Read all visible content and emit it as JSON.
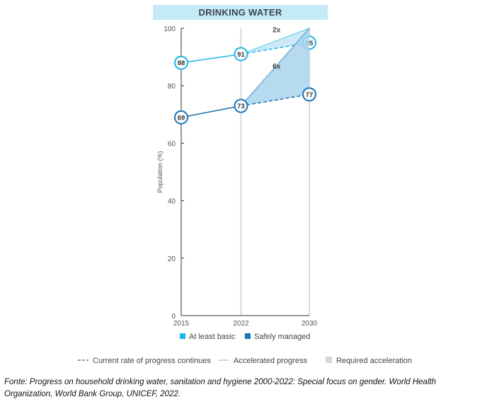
{
  "chart_data": {
    "type": "line",
    "title": "DRINKING WATER",
    "ylabel": "Population (%)",
    "xlabel": "",
    "ylim": [
      0,
      100
    ],
    "yticks": [
      0,
      20,
      40,
      60,
      80,
      100
    ],
    "xticks": [
      "2015",
      "2022",
      "2030"
    ],
    "x": [
      2015,
      2022,
      2030
    ],
    "series": [
      {
        "name": "At least basic",
        "color": "#1fb5e6",
        "values": [
          88,
          91,
          null
        ],
        "current_rate_2030": 95,
        "accelerated_2030": 100,
        "multiplier_label": "2x"
      },
      {
        "name": "Safely managed",
        "color": "#1a75b8",
        "values": [
          69,
          73,
          null
        ],
        "current_rate_2030": 77,
        "accelerated_2030": 100,
        "multiplier_label": "6x"
      }
    ],
    "legend": [
      "At least basic",
      "Safely managed"
    ],
    "legend2": [
      "Current rate of progress continues",
      "Accelerated progress",
      "Required acceleration"
    ],
    "legend_placement": "bottom"
  },
  "caption": "Fonte: Progress on household drinking water, sanitation and hygiene 2000-2022: Special focus on gender. World Health Organization, World Bank Group, UNICEF, 2022."
}
